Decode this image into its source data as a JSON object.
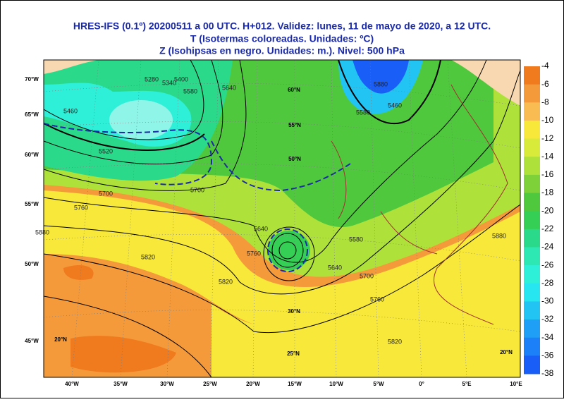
{
  "header": {
    "title_lines": [
      "HRES-IFS (0.1º) 20200511 a 00 UTC.  H+012. Validez: lunes, 11 de mayo de 2020,  a  12 UTC.",
      "T (Isotermas coloreadas. Unidades: ºC)",
      "Z (Isohipsas en negro. Unidades: m.).   Nivel: 500 hPa"
    ]
  },
  "colorbar": {
    "levels": [
      -4,
      -6,
      -8,
      -10,
      -12,
      -14,
      -16,
      -18,
      -20,
      -22,
      -24,
      -26,
      -28,
      -30,
      -32,
      -34,
      -36,
      -38
    ],
    "colors": [
      "#f07a1e",
      "#f59a3a",
      "#f8bc52",
      "#f7e83a",
      "#d8ea3a",
      "#aee23a",
      "#7fd13a",
      "#4fc83e",
      "#35cf55",
      "#2bd98a",
      "#2ee8b4",
      "#2ef0d8",
      "#28e6f0",
      "#22c4f4",
      "#1fa0f6",
      "#1c80f8",
      "#1a5ef8"
    ]
  },
  "map": {
    "lon_labels": [
      "40°W",
      "35°W",
      "30°W",
      "25°W",
      "20°W",
      "15°W",
      "10°W",
      "5°W",
      "0°",
      "5°E",
      "10°E"
    ],
    "lat_labels": [
      "70°W",
      "65°W",
      "60°W",
      "55°W",
      "50°W",
      "45°W"
    ],
    "inner_labels": [
      "60°N",
      "55°N",
      "50°N",
      "30°N",
      "25°N",
      "20°N",
      "20°N"
    ],
    "contour_labels": [
      5280,
      5340,
      5400,
      5460,
      5520,
      5580,
      5640,
      5700,
      5760,
      5820,
      5880,
      5640,
      5700,
      5760,
      5820,
      5880,
      5580,
      5460,
      5580,
      5640,
      5700,
      5760,
      5820,
      5880
    ]
  }
}
